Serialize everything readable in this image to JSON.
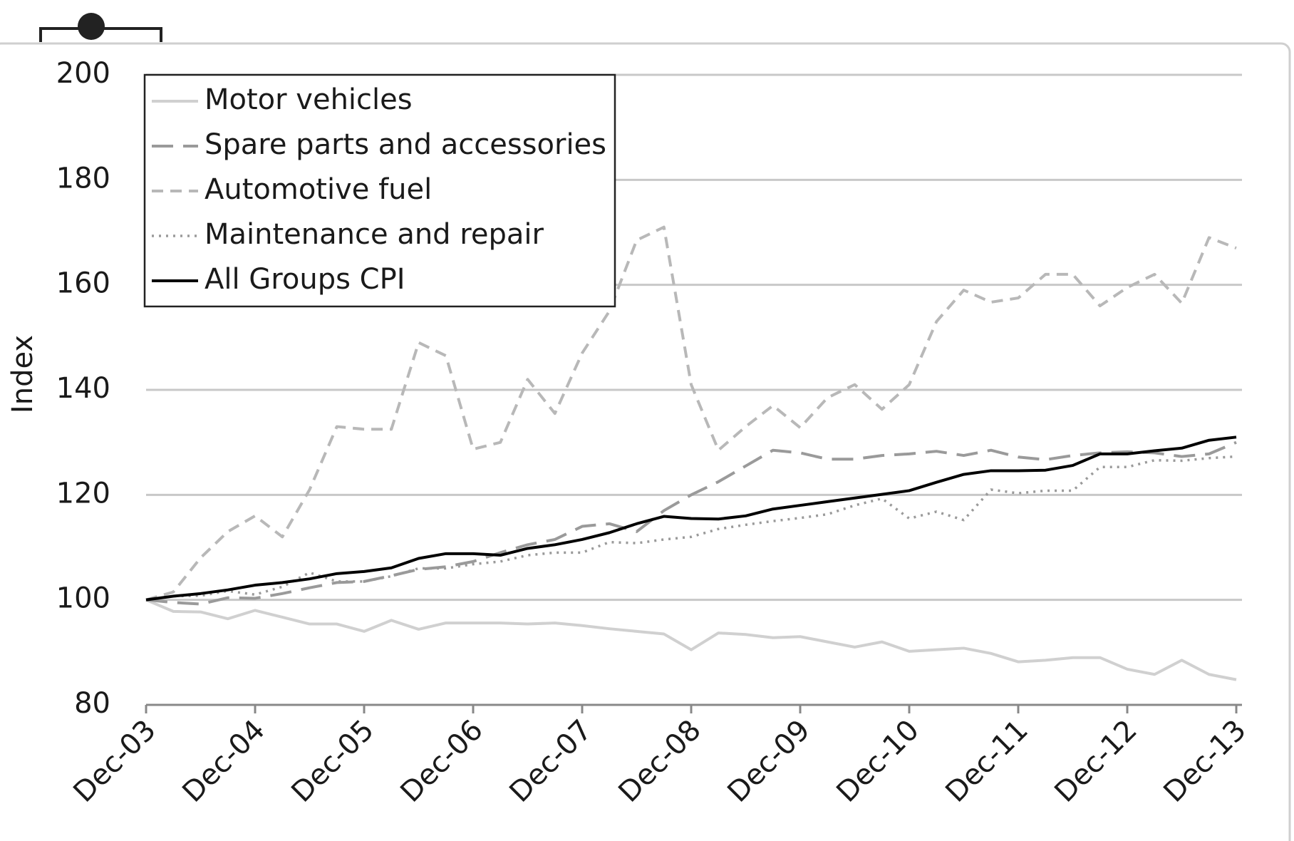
{
  "chart_data": {
    "type": "line",
    "y_label": "Index",
    "categories": [
      "Dec-03",
      null,
      null,
      null,
      "Dec-04",
      null,
      null,
      null,
      "Dec-05",
      null,
      null,
      null,
      "Dec-06",
      null,
      null,
      null,
      "Dec-07",
      null,
      null,
      null,
      "Dec-08",
      null,
      null,
      null,
      "Dec-09",
      null,
      null,
      null,
      "Dec-10",
      null,
      null,
      null,
      "Dec-11",
      null,
      null,
      null,
      "Dec-12",
      null,
      null,
      null,
      "Dec-13"
    ],
    "ylim": [
      80,
      200
    ],
    "yticks": [
      80,
      100,
      120,
      140,
      160,
      180,
      200
    ],
    "grid": true,
    "legend": "upper left",
    "series": [
      {
        "name": "Motor vehicles",
        "color": "#d0d0d0",
        "line_style": "solid",
        "values": [
          100,
          97.8,
          97.7,
          96.4,
          98,
          96.7,
          95.4,
          95.4,
          94,
          96.1,
          94.4,
          95.6,
          95.6,
          95.6,
          95.4,
          95.6,
          95.1,
          94.5,
          94,
          93.5,
          90.5,
          93.7,
          93.4,
          92.8,
          93,
          92,
          91,
          92,
          90.2,
          90.5,
          90.8,
          89.8,
          88.2,
          88.5,
          89,
          89,
          86.8,
          85.8,
          88.5,
          85.8,
          84.8
        ]
      },
      {
        "name": "Spare parts and accessories",
        "color": "#9a9a9a",
        "line_style": "long-dash",
        "values": [
          100,
          99.5,
          99.2,
          100.4,
          100.3,
          101.2,
          102.3,
          103.3,
          103.5,
          104.6,
          105.8,
          106.3,
          107.3,
          109,
          110.5,
          111.5,
          114,
          114.5,
          113,
          117,
          120,
          122.5,
          125.5,
          128.5,
          128,
          126.8,
          126.8,
          127.5,
          127.8,
          128.3,
          127.5,
          128.5,
          127.2,
          126.7,
          127.5,
          128,
          128.2,
          128,
          127.3,
          127.8,
          130
        ]
      },
      {
        "name": "Automotive fuel",
        "color": "#b8b8b8",
        "line_style": "dash",
        "values": [
          100,
          101.5,
          108,
          113,
          116,
          112,
          121,
          133,
          132.5,
          132.5,
          149,
          146.5,
          128.7,
          130,
          142,
          135.5,
          147,
          155,
          168.5,
          171,
          141,
          128.5,
          133,
          137,
          132.8,
          138.5,
          141,
          136.3,
          141,
          153,
          159,
          156.7,
          157.5,
          162,
          162,
          156,
          159.5,
          162,
          156.5,
          169,
          167
        ]
      },
      {
        "name": "Maintenance and repair",
        "color": "#9a9a9a",
        "line_style": "dot",
        "values": [
          100,
          100.7,
          100.8,
          101.7,
          101,
          102.5,
          105.2,
          103.5,
          103.5,
          104.5,
          106,
          106,
          106.8,
          107.3,
          108.5,
          109,
          109,
          111,
          110.8,
          111.5,
          112,
          113.5,
          114.3,
          115,
          115.6,
          116.3,
          118,
          119.3,
          115.5,
          116.8,
          115.2,
          121,
          120.3,
          120.8,
          120.8,
          125.3,
          125.3,
          126.6,
          126.5,
          127,
          127.3
        ]
      },
      {
        "name": "All Groups CPI",
        "color": "#000000",
        "line_style": "solid",
        "values": [
          100,
          100.7,
          101.2,
          101.9,
          102.8,
          103.3,
          104,
          105,
          105.4,
          106.1,
          107.9,
          108.8,
          108.8,
          108.5,
          109.8,
          110.5,
          111.5,
          112.8,
          114.5,
          115.9,
          115.5,
          115.4,
          116,
          117.3,
          118,
          118.7,
          119.4,
          120.1,
          120.8,
          122.4,
          123.9,
          124.6,
          124.6,
          124.7,
          125.6,
          127.8,
          127.8,
          128.4,
          128.9,
          130.4,
          131
        ]
      }
    ]
  }
}
